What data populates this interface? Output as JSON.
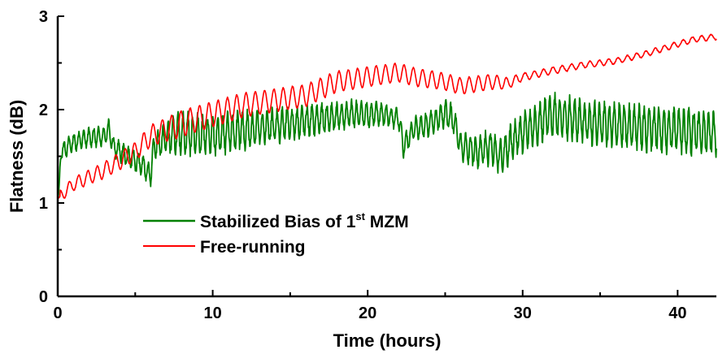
{
  "chart_data": {
    "type": "line",
    "title": "",
    "xlabel": "Time (hours)",
    "ylabel": "Flatness (dB)",
    "xlim": [
      0,
      42.5
    ],
    "ylim": [
      0,
      3
    ],
    "x_ticks": [
      "0",
      "10",
      "20",
      "30",
      "40"
    ],
    "y_ticks": [
      "0",
      "1",
      "2",
      "3"
    ],
    "grid": false,
    "legend_position": "lower-left",
    "series": [
      {
        "name": "Stabilized Bias of 1st MZM",
        "legend_main": "Stabilized Bias of 1",
        "legend_sup": "st",
        "legend_tail": " MZM",
        "color": "#008000",
        "trend": [
          [
            0,
            1.05
          ],
          [
            0.2,
            1.55
          ],
          [
            1,
            1.65
          ],
          [
            2,
            1.7
          ],
          [
            3,
            1.72
          ],
          [
            3.3,
            1.8
          ],
          [
            3.6,
            1.6
          ],
          [
            4.5,
            1.5
          ],
          [
            5.5,
            1.4
          ],
          [
            6,
            1.3
          ],
          [
            6.2,
            1.6
          ],
          [
            7,
            1.7
          ],
          [
            8,
            1.75
          ],
          [
            10,
            1.72
          ],
          [
            12,
            1.78
          ],
          [
            15,
            1.85
          ],
          [
            17,
            1.9
          ],
          [
            19,
            1.95
          ],
          [
            21,
            1.95
          ],
          [
            22,
            1.9
          ],
          [
            22.3,
            1.6
          ],
          [
            23,
            1.8
          ],
          [
            24,
            1.85
          ],
          [
            25,
            1.95
          ],
          [
            25.5,
            1.9
          ],
          [
            26,
            1.6
          ],
          [
            27,
            1.55
          ],
          [
            28,
            1.6
          ],
          [
            28.6,
            1.5
          ],
          [
            29.5,
            1.7
          ],
          [
            31,
            1.85
          ],
          [
            32,
            1.95
          ],
          [
            33,
            1.9
          ],
          [
            35,
            1.85
          ],
          [
            38,
            1.8
          ],
          [
            42.5,
            1.75
          ]
        ],
        "amplitude": [
          [
            0,
            0.08
          ],
          [
            5,
            0.1
          ],
          [
            6,
            0.1
          ],
          [
            8,
            0.2
          ],
          [
            12,
            0.18
          ],
          [
            20,
            0.12
          ],
          [
            22,
            0.1
          ],
          [
            32,
            0.2
          ],
          [
            42.5,
            0.22
          ]
        ],
        "ripple_period_hours": 0.32
      },
      {
        "name": "Free-running",
        "color": "#ff0000",
        "trend": [
          [
            0,
            1.05
          ],
          [
            1,
            1.2
          ],
          [
            3,
            1.35
          ],
          [
            5,
            1.55
          ],
          [
            6,
            1.72
          ],
          [
            8,
            1.85
          ],
          [
            10,
            1.95
          ],
          [
            12,
            2.05
          ],
          [
            14,
            2.1
          ],
          [
            16,
            2.15
          ],
          [
            18,
            2.3
          ],
          [
            20,
            2.35
          ],
          [
            22,
            2.4
          ],
          [
            23,
            2.35
          ],
          [
            25,
            2.3
          ],
          [
            26,
            2.25
          ],
          [
            28,
            2.3
          ],
          [
            29,
            2.28
          ],
          [
            30,
            2.35
          ],
          [
            32,
            2.42
          ],
          [
            34,
            2.48
          ],
          [
            36,
            2.52
          ],
          [
            38,
            2.6
          ],
          [
            40,
            2.7
          ],
          [
            41,
            2.75
          ],
          [
            42.5,
            2.78
          ]
        ],
        "amplitude": [
          [
            0,
            0.06
          ],
          [
            5,
            0.1
          ],
          [
            8,
            0.14
          ],
          [
            15,
            0.12
          ],
          [
            22,
            0.1
          ],
          [
            28,
            0.08
          ],
          [
            30,
            0.04
          ],
          [
            35,
            0.03
          ],
          [
            42.5,
            0.03
          ]
        ],
        "ripple_period_hours": 0.6
      }
    ]
  }
}
